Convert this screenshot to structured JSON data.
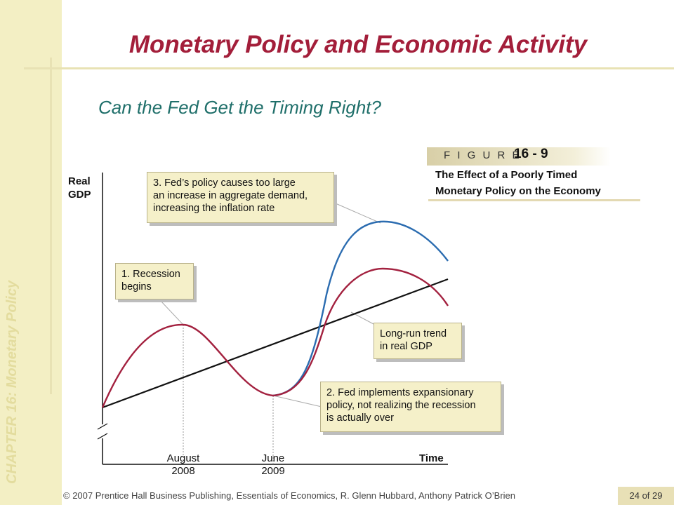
{
  "slide": {
    "title": "Monetary Policy and Economic Activity",
    "subtitle": "Can the Fed Get the Timing Right?",
    "side_label": "CHAPTER 16: Monetary Policy",
    "footer": "© 2007 Prentice Hall Business Publishing, Essentials of Economics, R. Glenn Hubbard, Anthony Patrick O’Brien",
    "page": "24 of 29"
  },
  "figure": {
    "label": "F I G U R E",
    "number": "16 - 9",
    "caption_line1": "The Effect of a Poorly Timed",
    "caption_line2": "Monetary Policy on the Economy"
  },
  "diagram": {
    "y_axis_label_1": "Real",
    "y_axis_label_2": "GDP",
    "x_axis_label": "Time",
    "ticks": [
      {
        "line1": "August",
        "line2": "2008"
      },
      {
        "line1": "June",
        "line2": "2009"
      }
    ],
    "callouts": {
      "recession": [
        "1. Recession",
        "begins"
      ],
      "fed_expands": [
        "2. Fed implements expansionary",
        "policy, not realizing the recession",
        "is actually over"
      ],
      "too_large": [
        "3. Fed’s policy causes too large",
        "an increase in aggregate demand,",
        "increasing the inflation rate"
      ],
      "trend": [
        "Long-run trend",
        "in real GDP"
      ]
    },
    "colors": {
      "actual_cycle": "#a3213f",
      "policy_path": "#2b6cb0",
      "trend": "#111111",
      "callout_bg": "#f5f0c9"
    }
  }
}
